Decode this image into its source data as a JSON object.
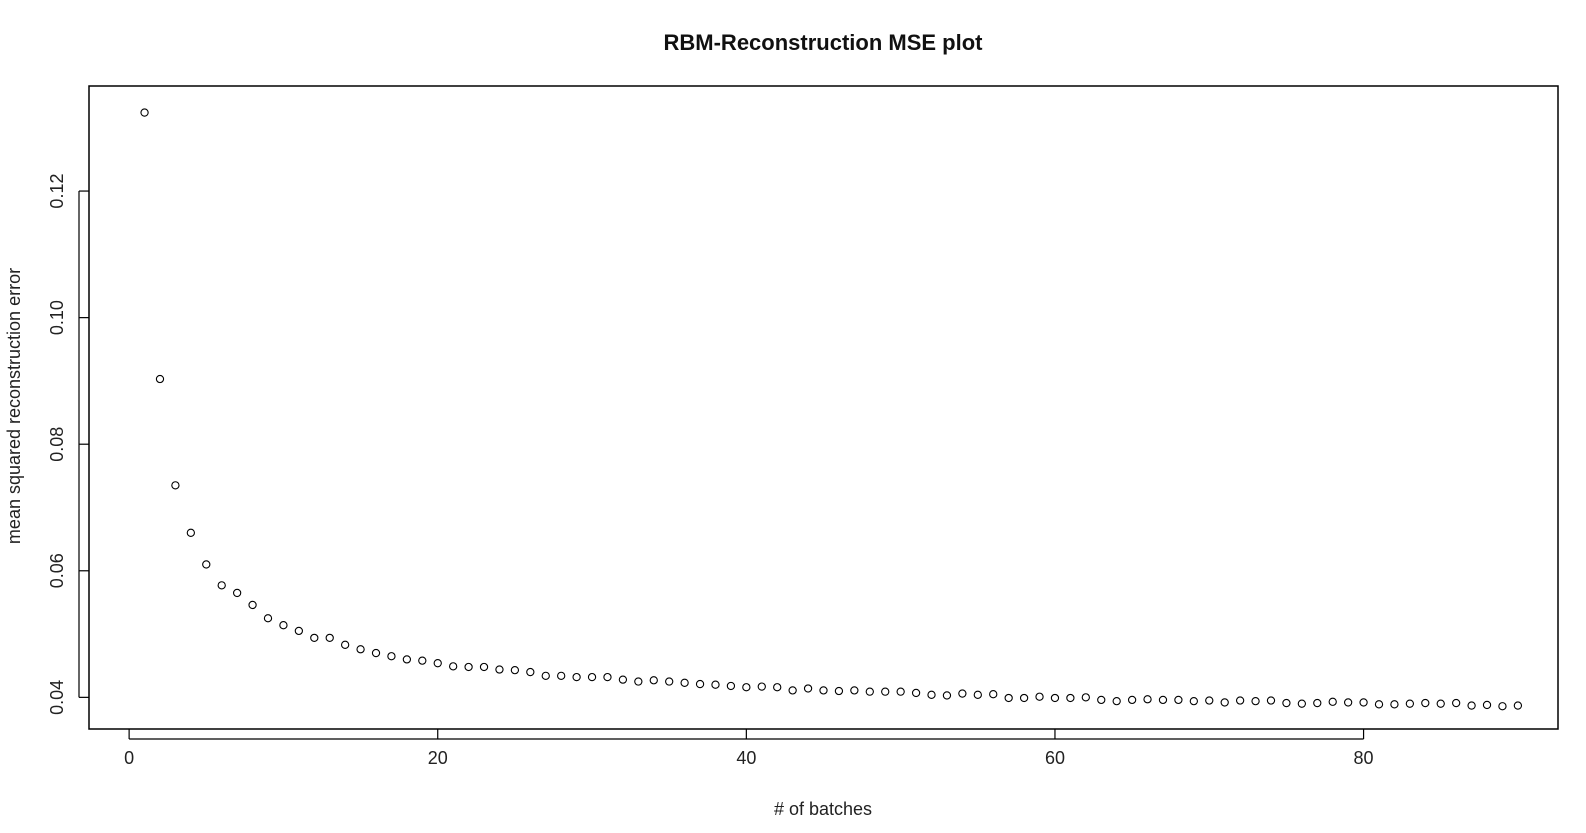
{
  "chart_data": {
    "type": "scatter",
    "title": "RBM-Reconstruction MSE plot",
    "xlabel": "# of batches",
    "ylabel": "mean squared reconstruction error",
    "xlim": [
      -2.6,
      92.6
    ],
    "ylim": [
      0.035,
      0.1366
    ],
    "xticks": [
      0,
      20,
      40,
      60,
      80
    ],
    "xtick_labels": [
      "0",
      "20",
      "40",
      "60",
      "80"
    ],
    "yticks": [
      0.04,
      0.06,
      0.08,
      0.1,
      0.12
    ],
    "ytick_labels": [
      "0.04",
      "0.06",
      "0.08",
      "0.10",
      "0.12"
    ],
    "grid": false,
    "marker": "open-circle",
    "x": [
      1,
      2,
      3,
      4,
      5,
      6,
      7,
      8,
      9,
      10,
      11,
      12,
      13,
      14,
      15,
      16,
      17,
      18,
      19,
      20,
      21,
      22,
      23,
      24,
      25,
      26,
      27,
      28,
      29,
      30,
      31,
      32,
      33,
      34,
      35,
      36,
      37,
      38,
      39,
      40,
      41,
      42,
      43,
      44,
      45,
      46,
      47,
      48,
      49,
      50,
      51,
      52,
      53,
      54,
      55,
      56,
      57,
      58,
      59,
      60,
      61,
      62,
      63,
      64,
      65,
      66,
      67,
      68,
      69,
      70,
      71,
      72,
      73,
      74,
      75,
      76,
      77,
      78,
      79,
      80,
      81,
      82,
      83,
      84,
      85,
      86,
      87,
      88,
      89,
      90
    ],
    "y": [
      0.1324,
      0.0903,
      0.0735,
      0.066,
      0.061,
      0.0577,
      0.0565,
      0.0546,
      0.0525,
      0.0514,
      0.0505,
      0.0494,
      0.0494,
      0.0483,
      0.0476,
      0.047,
      0.0465,
      0.046,
      0.0458,
      0.0454,
      0.0449,
      0.0448,
      0.0448,
      0.0444,
      0.0443,
      0.044,
      0.0434,
      0.0434,
      0.0432,
      0.0432,
      0.0432,
      0.0428,
      0.0425,
      0.0427,
      0.0425,
      0.0423,
      0.0421,
      0.042,
      0.0418,
      0.0416,
      0.0417,
      0.0416,
      0.0411,
      0.0414,
      0.0411,
      0.041,
      0.0411,
      0.0409,
      0.0409,
      0.0409,
      0.0407,
      0.0404,
      0.0403,
      0.0406,
      0.0404,
      0.0405,
      0.0399,
      0.0399,
      0.0401,
      0.0399,
      0.0399,
      0.04,
      0.0396,
      0.0394,
      0.0396,
      0.0397,
      0.0396,
      0.0396,
      0.0394,
      0.0395,
      0.0392,
      0.0395,
      0.0394,
      0.0395,
      0.0391,
      0.039,
      0.0391,
      0.0393,
      0.0392,
      0.0392,
      0.0389,
      0.0389,
      0.039,
      0.0391,
      0.039,
      0.0391,
      0.0387,
      0.0388,
      0.0386,
      0.0387
    ]
  }
}
